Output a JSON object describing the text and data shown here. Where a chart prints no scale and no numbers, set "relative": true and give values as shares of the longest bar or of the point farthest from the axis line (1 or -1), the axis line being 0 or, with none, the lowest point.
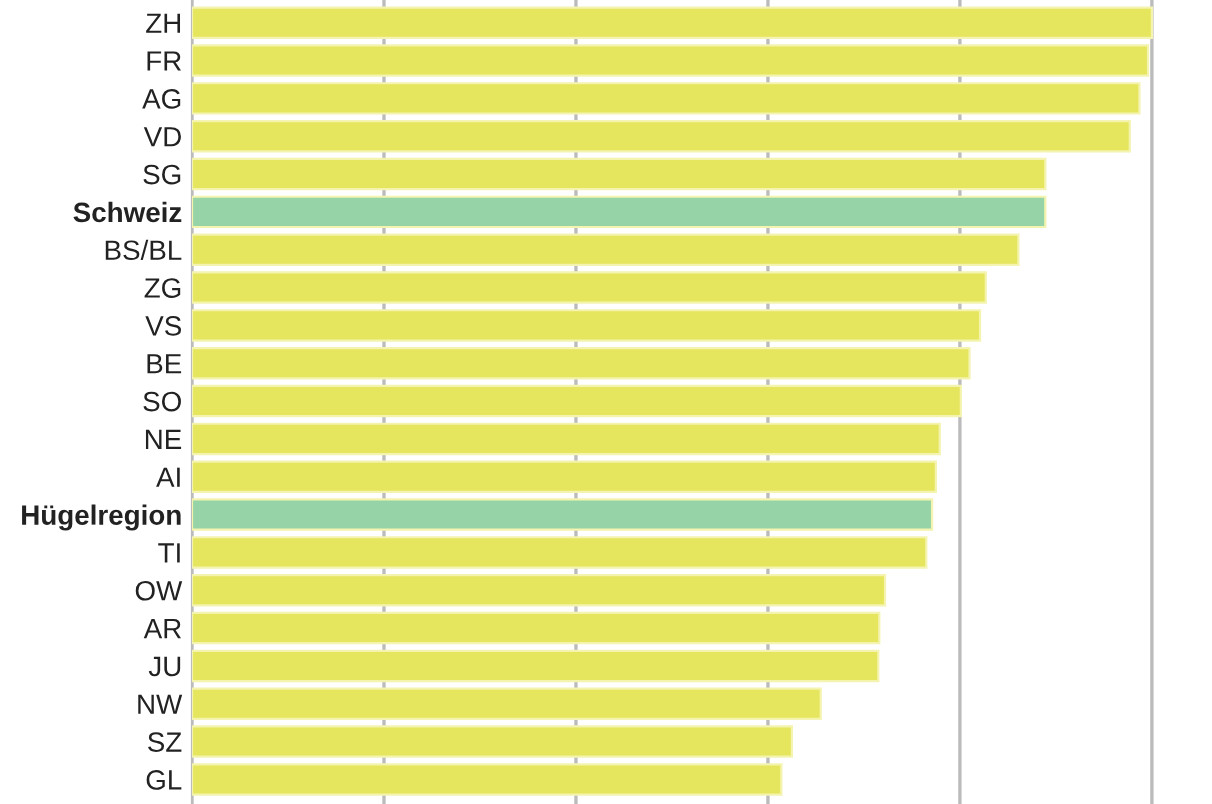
{
  "chart_data": {
    "type": "bar",
    "orientation": "horizontal",
    "relative": true,
    "grid": "x",
    "categories": [
      "ZH",
      "FR",
      "AG",
      "VD",
      "SG",
      "Schweiz",
      "BS/BL",
      "ZG",
      "VS",
      "BE",
      "SO",
      "NE",
      "AI",
      "Hügelregion",
      "TI",
      "OW",
      "AR",
      "JU",
      "NW",
      "SZ",
      "GL"
    ],
    "values": [
      1,
      0.996,
      0.987,
      0.977,
      0.889,
      0.889,
      0.861,
      0.827,
      0.821,
      0.81,
      0.801,
      0.779,
      0.775,
      0.771,
      0.765,
      0.722,
      0.716,
      0.715,
      0.655,
      0.625,
      0.614
    ],
    "colors": [
      "#e6e65e",
      "#e6e65e",
      "#e6e65e",
      "#e6e65e",
      "#e6e65e",
      "#96d4a8",
      "#e6e65e",
      "#e6e65e",
      "#e6e65e",
      "#e6e65e",
      "#e6e65e",
      "#e6e65e",
      "#e6e65e",
      "#96d4a8",
      "#e6e65e",
      "#e6e65e",
      "#e6e65e",
      "#e6e65e",
      "#e6e65e",
      "#e6e65e",
      "#e6e65e"
    ]
  }
}
